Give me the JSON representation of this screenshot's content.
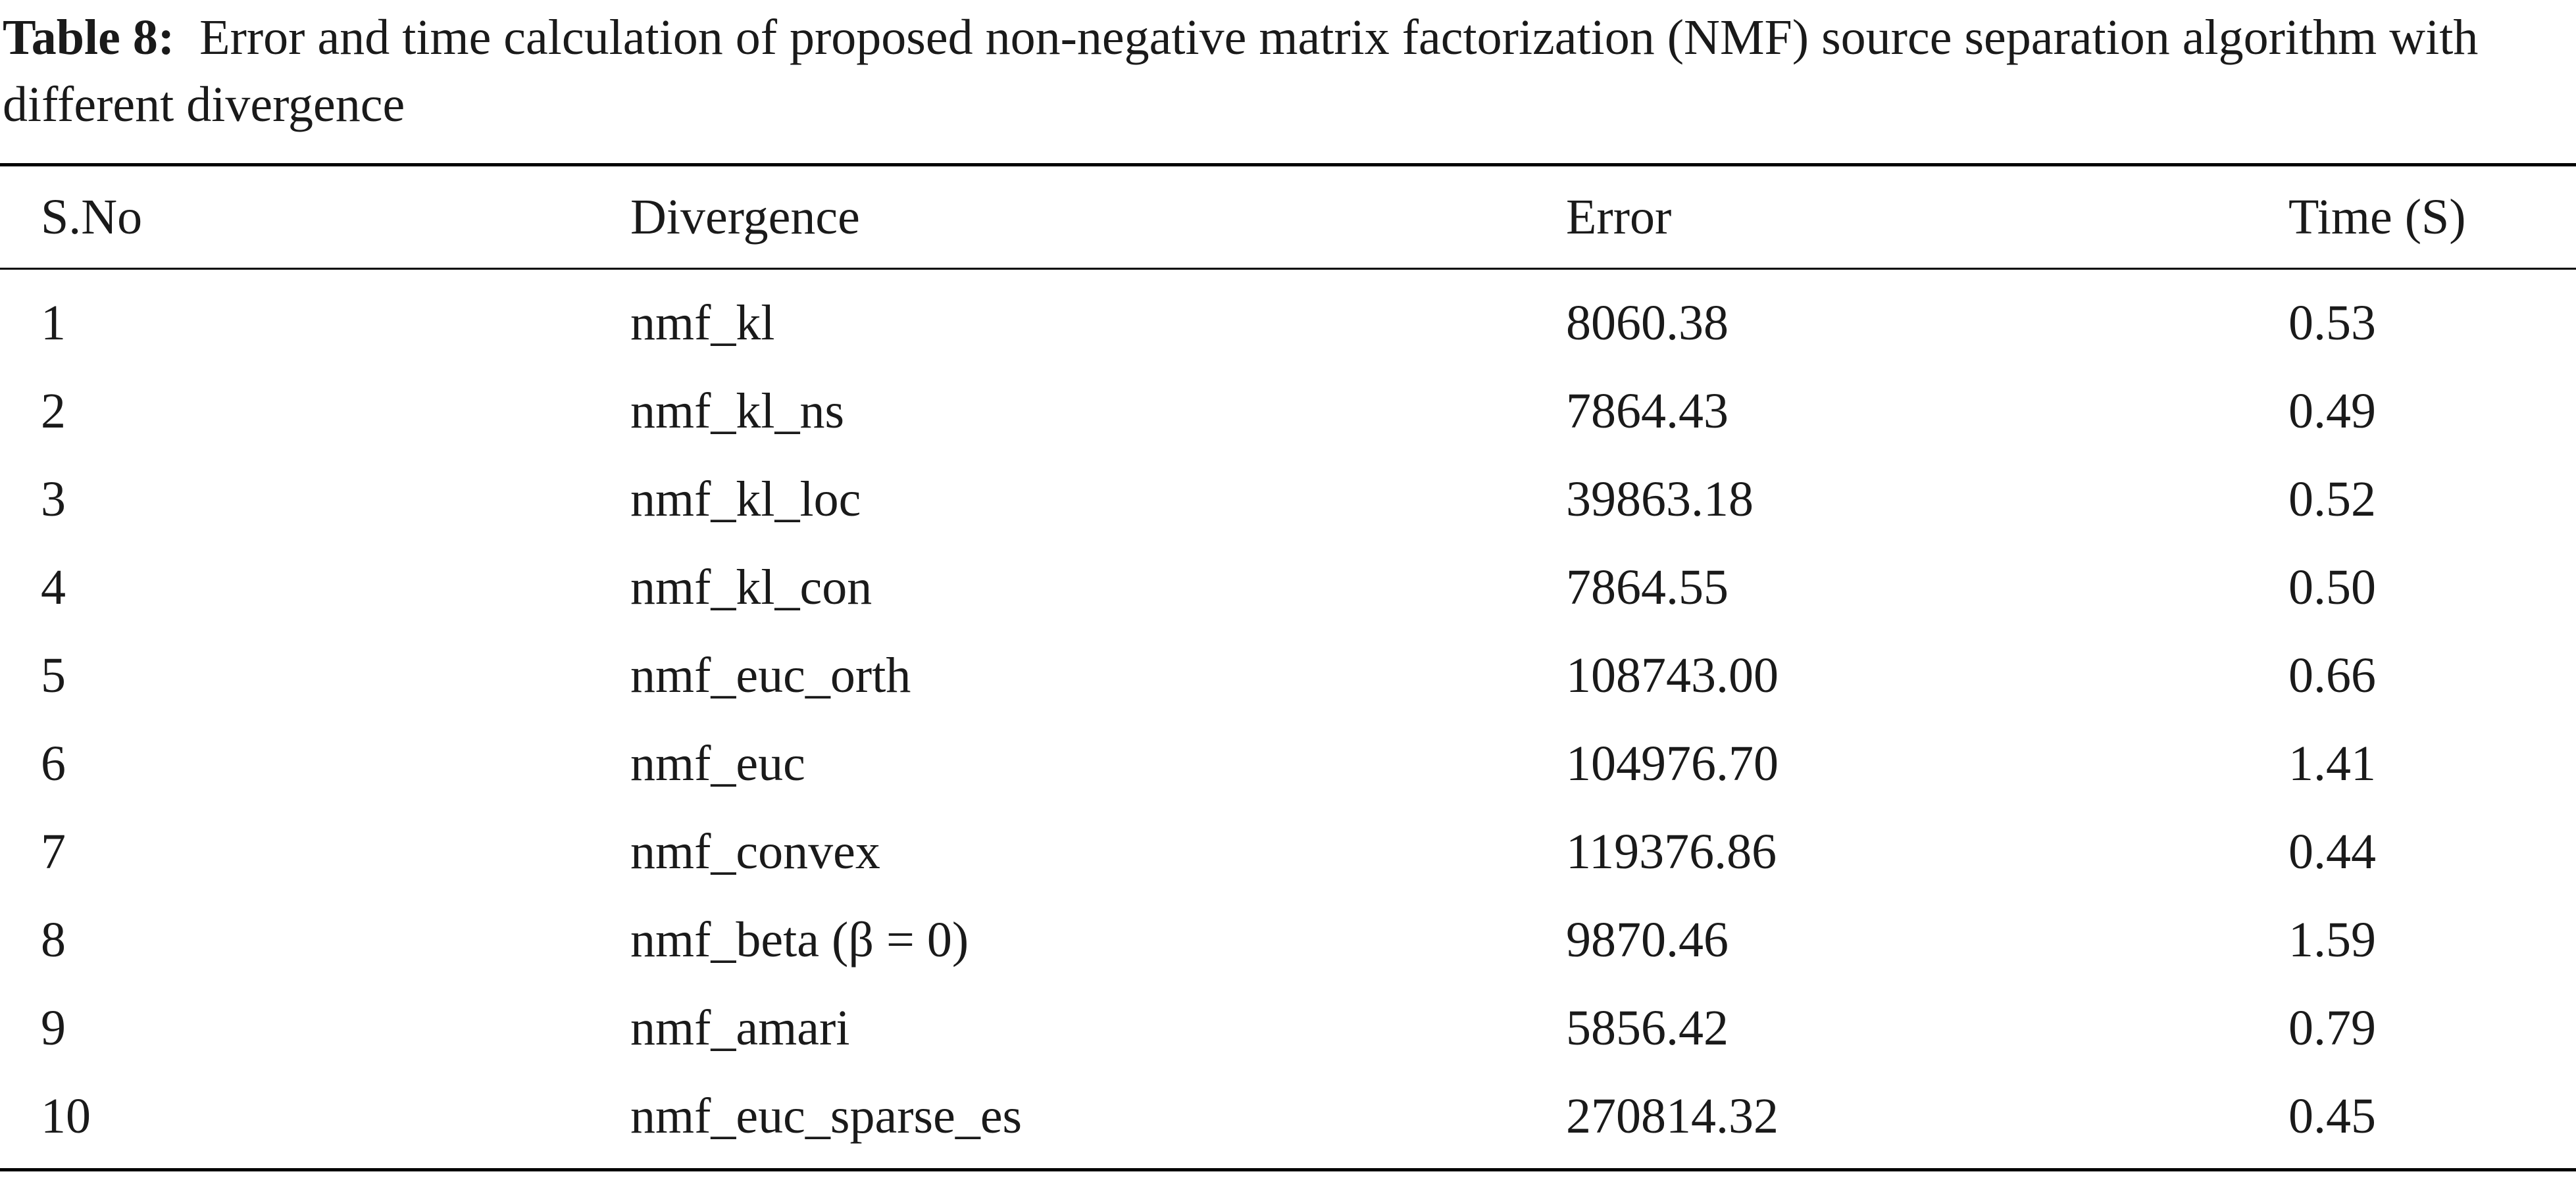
{
  "caption": {
    "label": "Table 8:",
    "text": "Error and time calculation of proposed non-negative matrix factorization (NMF) source separation algorithm with different divergence"
  },
  "table": {
    "headers": [
      "S.No",
      "Divergence",
      "Error",
      "Time (S)"
    ],
    "rows": [
      [
        "1",
        "nmf_kl",
        "8060.38",
        "0.53"
      ],
      [
        "2",
        "nmf_kl_ns",
        "7864.43",
        "0.49"
      ],
      [
        "3",
        "nmf_kl_loc",
        "39863.18",
        "0.52"
      ],
      [
        "4",
        "nmf_kl_con",
        "7864.55",
        "0.50"
      ],
      [
        "5",
        "nmf_euc_orth",
        "108743.00",
        "0.66"
      ],
      [
        "6",
        "nmf_euc",
        "104976.70",
        "1.41"
      ],
      [
        "7",
        "nmf_convex",
        "119376.86",
        "0.44"
      ],
      [
        "8",
        "nmf_beta (β = 0)",
        "9870.46",
        "1.59"
      ],
      [
        "9",
        "nmf_amari",
        "5856.42",
        "0.79"
      ],
      [
        "10",
        "nmf_euc_sparse_es",
        "270814.32",
        "0.45"
      ]
    ]
  }
}
